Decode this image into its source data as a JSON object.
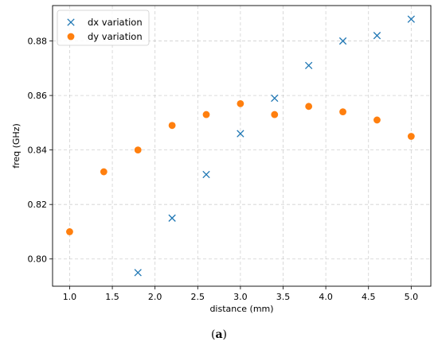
{
  "caption": {
    "open": "(",
    "letter": "a",
    "close": ")"
  },
  "chart_data": {
    "type": "scatter",
    "xlabel": "distance (mm)",
    "ylabel": "freq (GHz)",
    "xlim": [
      0.8,
      5.23
    ],
    "ylim": [
      0.79,
      0.893
    ],
    "xticks": [
      1.0,
      1.5,
      2.0,
      2.5,
      3.0,
      3.5,
      4.0,
      4.5,
      5.0
    ],
    "xtick_labels": [
      "1.0",
      "1.5",
      "2.0",
      "2.5",
      "3.0",
      "3.5",
      "4.0",
      "4.5",
      "5.0"
    ],
    "yticks": [
      0.8,
      0.82,
      0.84,
      0.86,
      0.88
    ],
    "ytick_labels": [
      "0.80",
      "0.82",
      "0.84",
      "0.86",
      "0.88"
    ],
    "grid": true,
    "legend_position": "top-left",
    "series": [
      {
        "name": "dx variation",
        "marker": "x",
        "color": "#1f77b4",
        "x": [
          1.8,
          2.2,
          2.6,
          3.0,
          3.4,
          3.8,
          4.2,
          4.6,
          5.0
        ],
        "y": [
          0.795,
          0.815,
          0.831,
          0.846,
          0.859,
          0.871,
          0.88,
          0.882,
          0.888
        ]
      },
      {
        "name": "dy variation",
        "marker": "circle",
        "color": "#ff7f0e",
        "x": [
          1.0,
          1.4,
          1.8,
          2.2,
          2.6,
          3.0,
          3.4,
          3.8,
          4.2,
          4.6,
          5.0
        ],
        "y": [
          0.81,
          0.832,
          0.84,
          0.849,
          0.853,
          0.857,
          0.853,
          0.856,
          0.854,
          0.851,
          0.845
        ]
      }
    ]
  }
}
